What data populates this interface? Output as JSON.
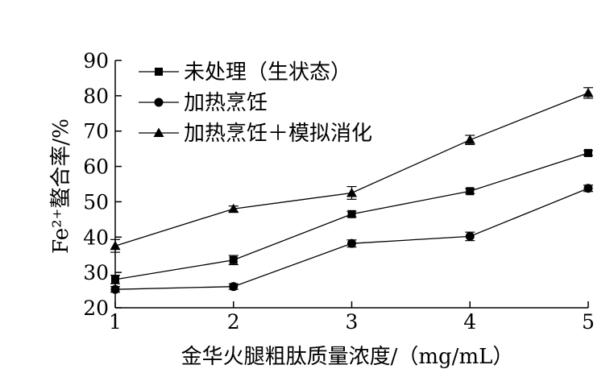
{
  "chart_data": {
    "type": "line",
    "title": "",
    "xlabel": "金华火腿粗肽质量浓度/（mg/mL）",
    "ylabel": "Fe²⁺螯合率/%",
    "x": [
      1,
      2,
      3,
      4,
      5
    ],
    "xlim": [
      1,
      5
    ],
    "ylim": [
      20,
      90
    ],
    "x_ticks": [
      "1",
      "2",
      "3",
      "4",
      "5"
    ],
    "y_ticks": [
      "20",
      "30",
      "40",
      "50",
      "60",
      "70",
      "80",
      "90"
    ],
    "grid": false,
    "legend_position": "top-left",
    "series": [
      {
        "name": "未处理（生状态）",
        "marker": "square",
        "values": [
          28.0,
          33.5,
          46.5,
          53.0,
          63.8
        ],
        "errors": [
          1.2,
          1.3,
          0.8,
          0.7,
          0.7
        ]
      },
      {
        "name": "加热烹饪",
        "marker": "circle",
        "values": [
          25.2,
          26.0,
          38.2,
          40.2,
          53.8
        ],
        "errors": [
          0.8,
          0.8,
          1.0,
          1.2,
          0.9
        ]
      },
      {
        "name": "加热烹饪＋模拟消化",
        "marker": "triangle",
        "values": [
          37.5,
          48.0,
          52.5,
          67.5,
          80.8
        ],
        "errors": [
          1.8,
          0.8,
          1.8,
          1.3,
          1.5
        ]
      }
    ]
  }
}
